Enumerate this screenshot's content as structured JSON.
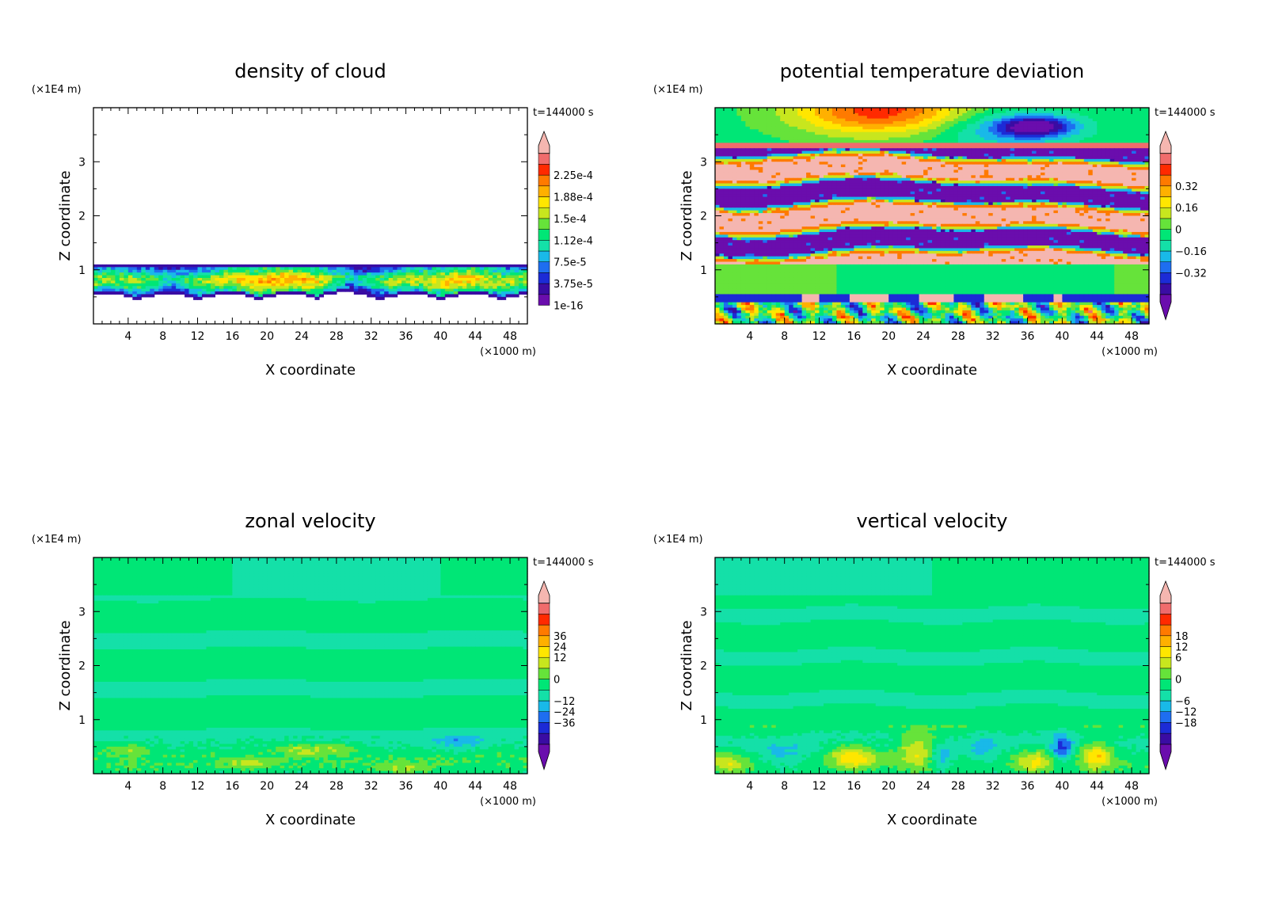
{
  "figure": {
    "time_label": "t=144000 s",
    "z_unit": "(×1E4 m)",
    "x_unit": "(×1000 m)",
    "xlabel": "X coordinate",
    "ylabel": "Z coordinate"
  },
  "palette": [
    "#6a0dad",
    "#3a0ca3",
    "#1c2bd6",
    "#1e6ef0",
    "#19b9e8",
    "#14e0a8",
    "#00e676",
    "#66e33a",
    "#c8e61e",
    "#ffe600",
    "#ffb000",
    "#ff7a00",
    "#ff2a00",
    "#f06c6c",
    "#f5b6b0"
  ],
  "chart_data": [
    {
      "type": "heatmap",
      "title": "density of cloud",
      "xlabel": "X coordinate",
      "ylabel": "Z coordinate",
      "xlim": [
        0,
        50
      ],
      "ylim": [
        0,
        4
      ],
      "x_ticks": [
        "4",
        "8",
        "12",
        "16",
        "20",
        "24",
        "28",
        "32",
        "36",
        "40",
        "44",
        "48"
      ],
      "y_ticks": [
        "1",
        "2",
        "3"
      ],
      "colorbar": {
        "labels": [
          "2.25e-4",
          "1.88e-4",
          "1.5e-4",
          "1.12e-4",
          "7.5e-5",
          "3.75e-5",
          "1e-16"
        ],
        "label_bins": [
          12,
          10,
          8,
          6,
          4,
          2,
          0
        ],
        "min_arrow": false,
        "max_arrow": true
      },
      "field": "cloud",
      "cloud_layer_z": [
        0.55,
        1.08
      ]
    },
    {
      "type": "heatmap",
      "title": "potential temperature deviation",
      "xlabel": "X coordinate",
      "ylabel": "Z coordinate",
      "xlim": [
        0,
        50
      ],
      "ylim": [
        0,
        4
      ],
      "x_ticks": [
        "4",
        "8",
        "12",
        "16",
        "20",
        "24",
        "28",
        "32",
        "36",
        "40",
        "44",
        "48"
      ],
      "y_ticks": [
        "1",
        "2",
        "3"
      ],
      "colorbar": {
        "labels": [
          "0.32",
          "0.16",
          "0",
          "−0.16",
          "−0.32"
        ],
        "label_bins": [
          11,
          9,
          7,
          5,
          3
        ],
        "min_arrow": true,
        "max_arrow": true
      },
      "field": "theta"
    },
    {
      "type": "heatmap",
      "title": "zonal velocity",
      "xlabel": "X coordinate",
      "ylabel": "Z coordinate",
      "xlim": [
        0,
        50
      ],
      "ylim": [
        0,
        4
      ],
      "x_ticks": [
        "4",
        "8",
        "12",
        "16",
        "20",
        "24",
        "28",
        "32",
        "36",
        "40",
        "44",
        "48"
      ],
      "y_ticks": [
        "1",
        "2",
        "3"
      ],
      "colorbar": {
        "labels": [
          "36",
          "24",
          "12",
          "0",
          "−12",
          "−24",
          "−36"
        ],
        "label_bins": [
          11,
          10,
          9,
          7,
          5,
          4,
          3
        ],
        "min_arrow": true,
        "max_arrow": true
      },
      "field": "u"
    },
    {
      "type": "heatmap",
      "title": "vertical velocity",
      "xlabel": "X coordinate",
      "ylabel": "Z coordinate",
      "xlim": [
        0,
        50
      ],
      "ylim": [
        0,
        4
      ],
      "x_ticks": [
        "4",
        "8",
        "12",
        "16",
        "20",
        "24",
        "28",
        "32",
        "36",
        "40",
        "44",
        "48"
      ],
      "y_ticks": [
        "1",
        "2",
        "3"
      ],
      "colorbar": {
        "labels": [
          "18",
          "12",
          "6",
          "0",
          "−6",
          "−12",
          "−18"
        ],
        "label_bins": [
          11,
          10,
          9,
          7,
          5,
          4,
          3
        ],
        "min_arrow": true,
        "max_arrow": true
      },
      "field": "w"
    }
  ]
}
